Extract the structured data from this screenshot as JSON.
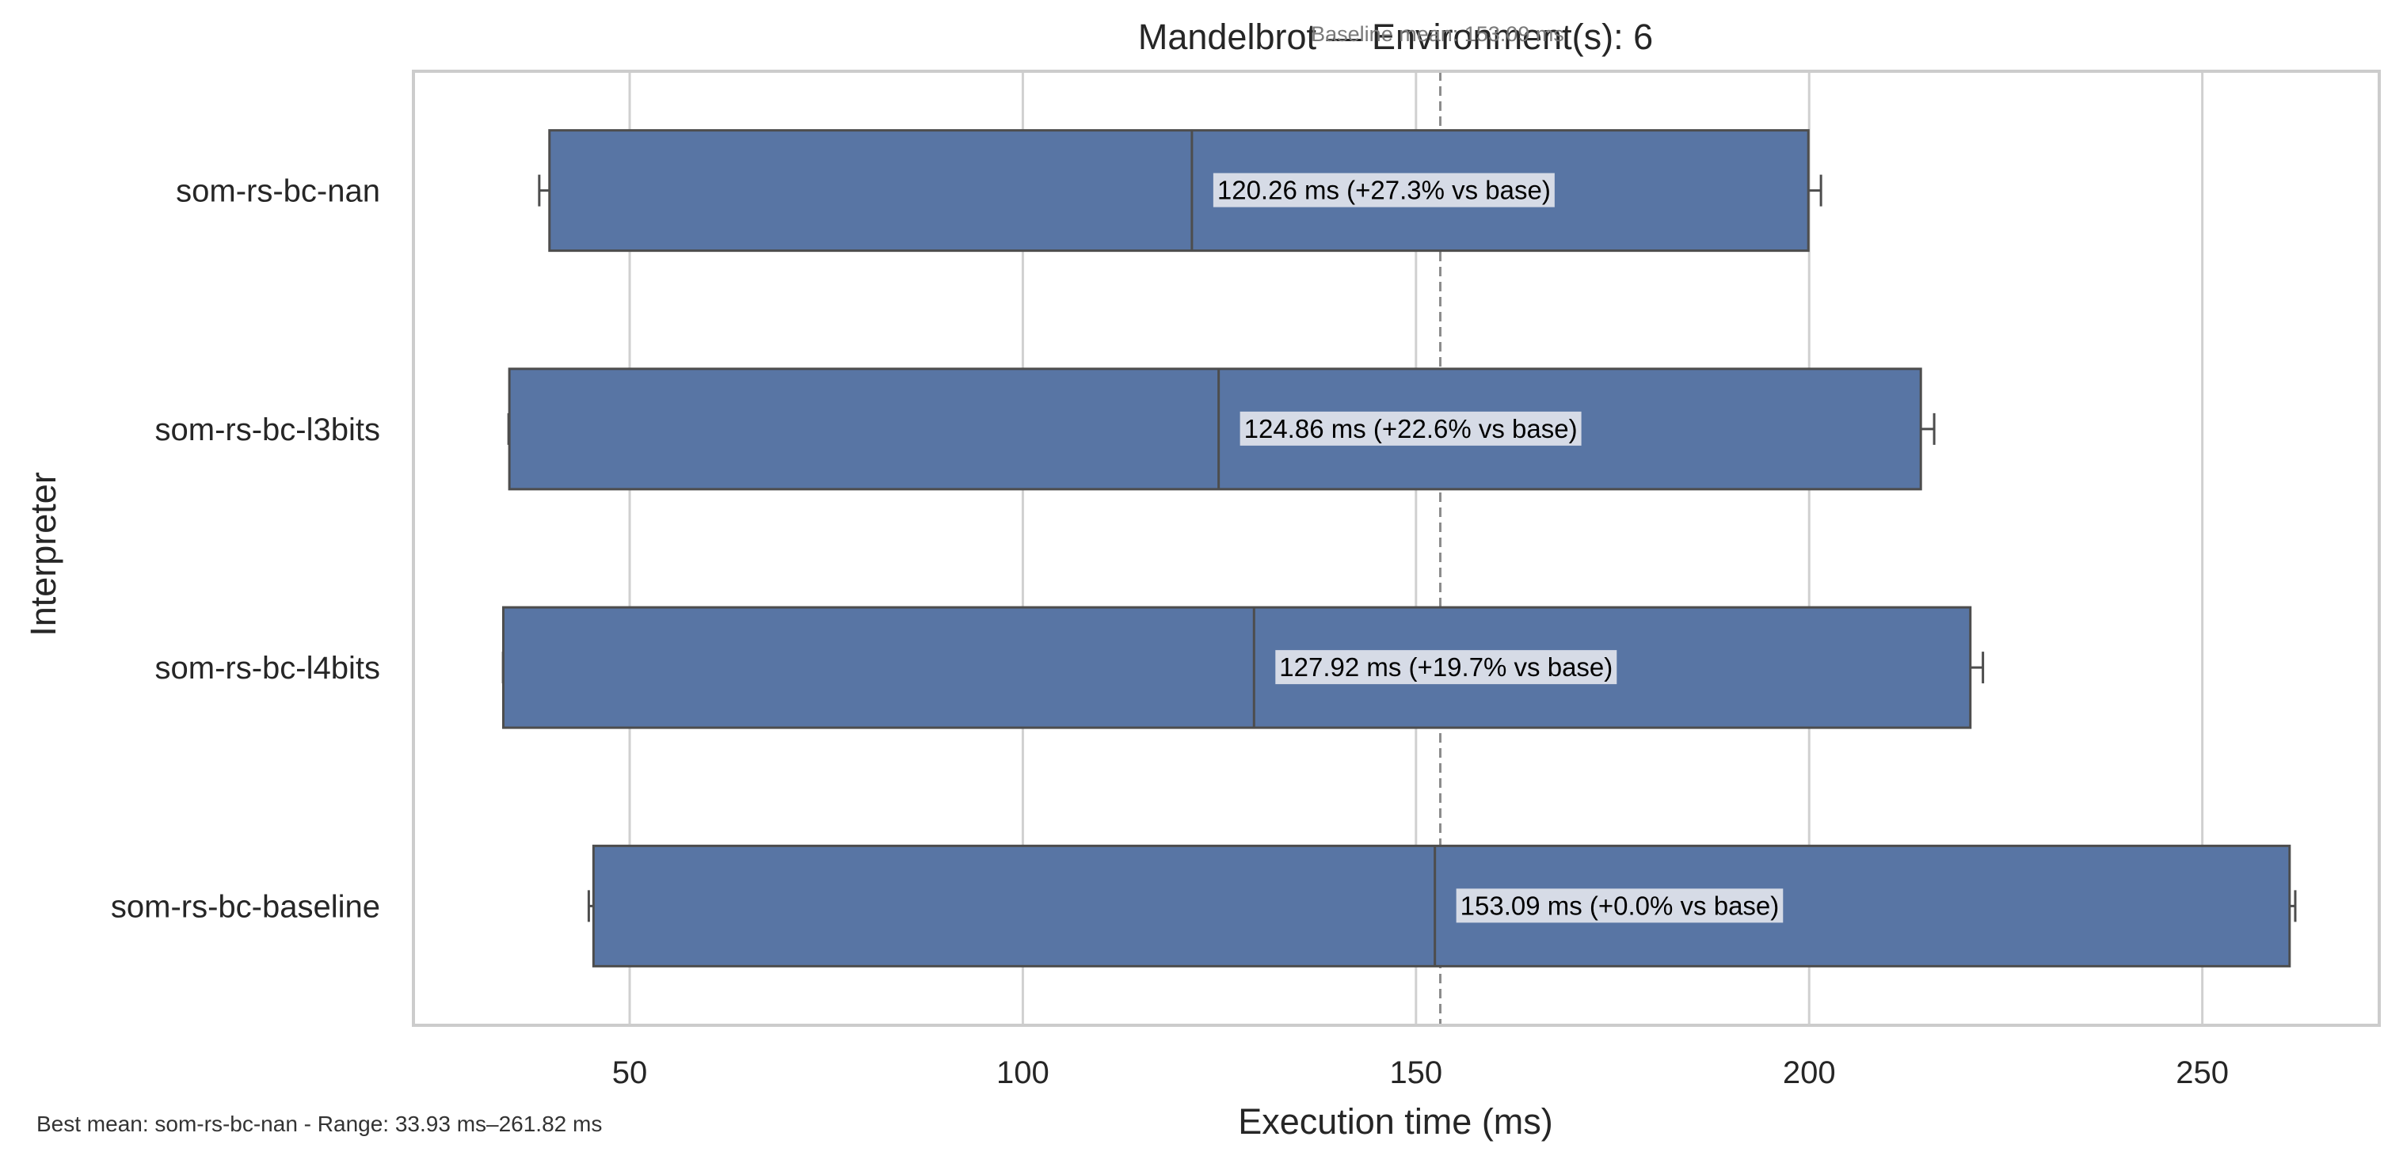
{
  "chart_data": {
    "type": "box",
    "orientation": "horizontal",
    "title": "Mandelbrot — Environment(s): 6",
    "xlabel": "Execution time (ms)",
    "ylabel": "Interpreter",
    "xlim": [
      22.5,
      272.5
    ],
    "xticks": [
      50,
      100,
      150,
      200,
      250
    ],
    "grid": true,
    "categories": [
      "som-rs-bc-nan",
      "som-rs-bc-l3bits",
      "som-rs-bc-l4bits",
      "som-rs-bc-baseline"
    ],
    "boxes": [
      {
        "name": "som-rs-bc-nan",
        "whisker_low": 38.5,
        "q1": 39.8,
        "median": 121.5,
        "q3": 199.9,
        "whisker_high": 201.5,
        "annotation": "120.26 ms  (+27.3% vs base)"
      },
      {
        "name": "som-rs-bc-l3bits",
        "whisker_low": 34.6,
        "q1": 34.7,
        "median": 124.9,
        "q3": 214.2,
        "whisker_high": 215.9,
        "annotation": "124.86 ms  (+22.6% vs base)"
      },
      {
        "name": "som-rs-bc-l4bits",
        "whisker_low": 33.9,
        "q1": 33.93,
        "median": 129.4,
        "q3": 220.5,
        "whisker_high": 222.1,
        "annotation": "127.92 ms  (+19.7% vs base)"
      },
      {
        "name": "som-rs-bc-baseline",
        "whisker_low": 44.8,
        "q1": 45.4,
        "median": 152.4,
        "q3": 261.1,
        "whisker_high": 261.82,
        "annotation": "153.09 ms  (+0.0% vs base)"
      }
    ],
    "reference_line": {
      "value": 153.09,
      "label": "Baseline mean: 153.09 ms",
      "style": "dashed"
    },
    "colors": {
      "box": "#5875a4",
      "box_edge": "#4d4d4d",
      "grid": "#d0d0d0",
      "ref_line": "#8c8c8c",
      "label_bg": "#d6dbe6"
    }
  },
  "footer": "Best mean: som-rs-bc-nan - Range: 33.93 ms–261.82 ms"
}
